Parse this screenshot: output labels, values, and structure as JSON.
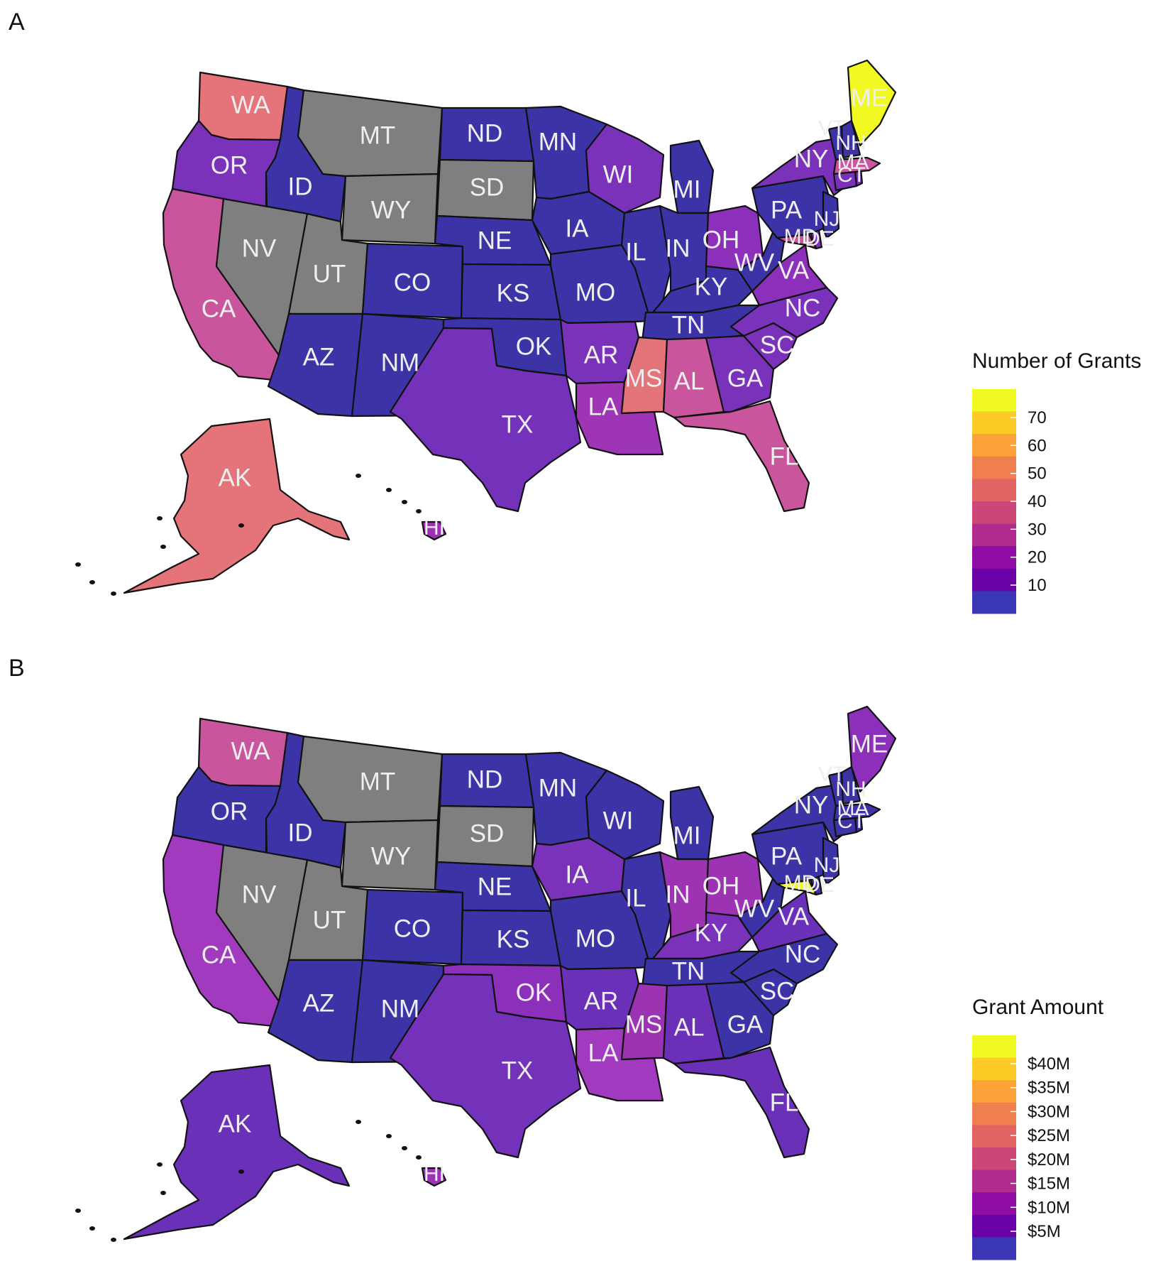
{
  "panels": [
    {
      "letter": "A",
      "legend": {
        "title": "Number of Grants",
        "ticks": [
          "70",
          "60",
          "50",
          "40",
          "30",
          "20",
          "10"
        ],
        "colors": [
          "#f0f921",
          "#fdca26",
          "#fba238",
          "#f07f4f",
          "#e16462",
          "#cc4778",
          "#b12a90",
          "#8f0da4",
          "#6a00a8",
          "#3b36b4"
        ]
      },
      "states": {
        "WA": "#e4737a",
        "OR": "#7a32bb",
        "CA": "#c9559c",
        "AK": "#e4737a",
        "HI": "#9b33b3",
        "ID": "#3c34a6",
        "MT": "#7f7f7f",
        "WY": "#7f7f7f",
        "NV": "#7f7f7f",
        "UT": "#7f7f7f",
        "AZ": "#3c34a6",
        "NM": "#3c34a6",
        "CO": "#3c34a6",
        "ND": "#3c34a6",
        "SD": "#7f7f7f",
        "NE": "#3c34a6",
        "KS": "#3c34a6",
        "OK": "#3c34a6",
        "TX": "#7431b9",
        "MN": "#3c34a6",
        "IA": "#3c34a6",
        "MO": "#3c34a6",
        "AR": "#7a32bb",
        "LA": "#9e34b6",
        "WI": "#7a32bb",
        "IL": "#3c34a6",
        "MI": "#3c34a6",
        "IN": "#3c34a6",
        "OH": "#8c2fba",
        "KY": "#3c34a6",
        "TN": "#3c34a6",
        "MS": "#e4737a",
        "AL": "#c9559c",
        "GA": "#7a32bb",
        "FL": "#c9559c",
        "SC": "#7a32bb",
        "NC": "#7a32bb",
        "VA": "#8c2fba",
        "WV": "#3c34a6",
        "PA": "#3c34a6",
        "NY": "#7a32bb",
        "VT": "#3c34a6",
        "NH": "#3c34a6",
        "ME": "#f0f921",
        "MA": "#c9559c",
        "RI": "#7a32bb",
        "CT": "#7a32bb",
        "NJ": "#3c34a6",
        "DE": "#7a32bb",
        "MD": "#c9559c"
      }
    },
    {
      "letter": "B",
      "legend": {
        "title": "Grant Amount",
        "ticks": [
          "$40M",
          "$35M",
          "$30M",
          "$25M",
          "$20M",
          "$15M",
          "$10M",
          "$5M"
        ],
        "colors": [
          "#f0f921",
          "#fdca26",
          "#fba238",
          "#f07f4f",
          "#e16462",
          "#cc4778",
          "#b12a90",
          "#8f0da4",
          "#6a00a8",
          "#3b36b4"
        ]
      },
      "states": {
        "WA": "#c9559c",
        "OR": "#3c34a6",
        "CA": "#a23ac0",
        "AK": "#6a30b8",
        "HI": "#9b33b3",
        "ID": "#3c34a6",
        "MT": "#7f7f7f",
        "WY": "#7f7f7f",
        "NV": "#7f7f7f",
        "UT": "#7f7f7f",
        "AZ": "#3c34a6",
        "NM": "#3c34a6",
        "CO": "#3c34a6",
        "ND": "#3c34a6",
        "SD": "#7f7f7f",
        "NE": "#3c34a6",
        "KS": "#3c34a6",
        "OK": "#8c2fba",
        "TX": "#7431b9",
        "MN": "#3c34a6",
        "IA": "#7a32bb",
        "MO": "#3c34a6",
        "AR": "#6a30b8",
        "LA": "#a23ac0",
        "WI": "#3c34a6",
        "IL": "#3c34a6",
        "MI": "#3c34a6",
        "IN": "#9b33b3",
        "OH": "#9b33b3",
        "KY": "#7a32bb",
        "TN": "#3c34a6",
        "MS": "#9b33b3",
        "AL": "#6a30b8",
        "GA": "#3c34a6",
        "FL": "#6a30b8",
        "SC": "#3c34a6",
        "NC": "#3c34a6",
        "VA": "#6a30b8",
        "WV": "#3c34a6",
        "PA": "#3c34a6",
        "NY": "#3c34a6",
        "VT": "#3c34a6",
        "NH": "#3c34a6",
        "ME": "#8c2fba",
        "MA": "#3c34a6",
        "RI": "#3c34a6",
        "CT": "#3c34a6",
        "NJ": "#3c34a6",
        "DE": "#3c34a6",
        "MD": "#f0f921"
      }
    }
  ]
}
